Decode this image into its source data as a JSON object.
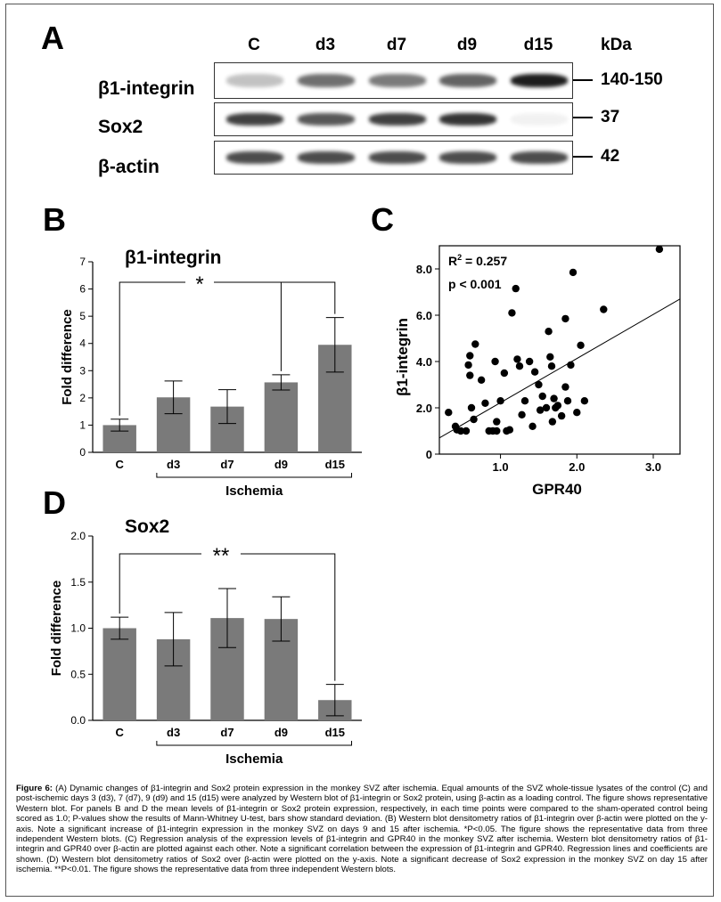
{
  "panel_a": {
    "letter": "A",
    "lanes": [
      "C",
      "d3",
      "d7",
      "d9",
      "d15"
    ],
    "kda_header": "kDa",
    "blots": [
      {
        "protein": "β1-integrin",
        "kda": "140-150",
        "intensities": [
          0.25,
          0.6,
          0.55,
          0.65,
          0.95
        ]
      },
      {
        "protein": "Sox2",
        "kda": "37",
        "intensities": [
          0.8,
          0.7,
          0.8,
          0.85,
          0.05
        ]
      },
      {
        "protein": "β-actin",
        "kda": "42",
        "intensities": [
          0.75,
          0.75,
          0.75,
          0.75,
          0.75
        ]
      }
    ]
  },
  "chart_data": [
    {
      "panel": "B",
      "type": "bar",
      "title": "β1-integrin",
      "ylabel": "Fold difference",
      "xlabel": "Ischemia",
      "categories": [
        "C",
        "d3",
        "d7",
        "d9",
        "d15"
      ],
      "values": [
        1.0,
        2.02,
        1.68,
        2.57,
        3.95
      ],
      "errors": [
        0.22,
        0.6,
        0.62,
        0.28,
        1.0
      ],
      "ylim": [
        0,
        7
      ],
      "yticks": [
        "0",
        "1",
        "2",
        "3",
        "4",
        "5",
        "6",
        "7"
      ],
      "significance": "*"
    },
    {
      "panel": "C",
      "type": "scatter",
      "xlabel": "GPR40",
      "ylabel": "β1-integrin",
      "xlim": [
        0.2,
        3.35
      ],
      "ylim": [
        0,
        9.0
      ],
      "xticks": [
        "1.0",
        "2.0",
        "3.0"
      ],
      "yticks": [
        "0",
        "2.0",
        "4.0",
        "6.0",
        "8.0"
      ],
      "annotation_r2_label": "R",
      "annotation_r2_exp": "2",
      "annotation_r2_value": "= 0.257",
      "annotation_p": "p < 0.001",
      "regression": {
        "x": [
          0.2,
          3.35
        ],
        "y": [
          0.7,
          6.7
        ]
      },
      "points": [
        [
          0.32,
          1.8
        ],
        [
          0.41,
          1.2
        ],
        [
          0.43,
          1.05
        ],
        [
          0.48,
          1.0
        ],
        [
          0.55,
          1.0
        ],
        [
          0.58,
          3.85
        ],
        [
          0.6,
          4.25
        ],
        [
          0.6,
          3.4
        ],
        [
          0.62,
          2.0
        ],
        [
          0.65,
          1.5
        ],
        [
          0.67,
          4.75
        ],
        [
          0.75,
          3.2
        ],
        [
          0.8,
          2.2
        ],
        [
          0.85,
          1.0
        ],
        [
          0.9,
          1.0
        ],
        [
          0.93,
          4.0
        ],
        [
          0.95,
          1.4
        ],
        [
          0.95,
          1.0
        ],
        [
          1.0,
          2.3
        ],
        [
          1.05,
          3.5
        ],
        [
          1.08,
          1.0
        ],
        [
          1.12,
          1.05
        ],
        [
          1.15,
          6.1
        ],
        [
          1.2,
          7.15
        ],
        [
          1.22,
          4.1
        ],
        [
          1.25,
          3.8
        ],
        [
          1.28,
          1.7
        ],
        [
          1.32,
          2.3
        ],
        [
          1.38,
          4.0
        ],
        [
          1.42,
          1.2
        ],
        [
          1.45,
          3.55
        ],
        [
          1.5,
          3.0
        ],
        [
          1.52,
          1.9
        ],
        [
          1.55,
          2.5
        ],
        [
          1.6,
          2.0
        ],
        [
          1.63,
          5.3
        ],
        [
          1.65,
          4.2
        ],
        [
          1.67,
          3.8
        ],
        [
          1.68,
          1.4
        ],
        [
          1.7,
          2.4
        ],
        [
          1.72,
          2.0
        ],
        [
          1.75,
          2.1
        ],
        [
          1.8,
          1.65
        ],
        [
          1.85,
          5.85
        ],
        [
          1.85,
          2.9
        ],
        [
          1.88,
          2.3
        ],
        [
          1.92,
          3.85
        ],
        [
          1.95,
          7.85
        ],
        [
          2.0,
          1.8
        ],
        [
          2.05,
          4.7
        ],
        [
          2.1,
          2.3
        ],
        [
          2.35,
          6.25
        ],
        [
          3.08,
          8.85
        ]
      ]
    },
    {
      "panel": "D",
      "type": "bar",
      "title": "Sox2",
      "ylabel": "Fold difference",
      "xlabel": "Ischemia",
      "categories": [
        "C",
        "d3",
        "d7",
        "d9",
        "d15"
      ],
      "values": [
        1.0,
        0.88,
        1.11,
        1.1,
        0.22
      ],
      "errors": [
        0.12,
        0.29,
        0.32,
        0.24,
        0.17
      ],
      "ylim": [
        0,
        2.0
      ],
      "yticks": [
        "0.0",
        "0.5",
        "1.0",
        "1.5",
        "2.0"
      ],
      "significance": "**"
    }
  ],
  "colors": {
    "bar": "#7a7a7a",
    "band": "#111111"
  },
  "caption": {
    "label": "Figure 6:",
    "text": "(A) Dynamic changes of β1-integrin and Sox2 protein expression in the monkey SVZ after ischemia. Equal amounts of the SVZ whole-tissue lysates of the control (C) and post-ischemic days 3 (d3), 7 (d7), 9 (d9) and 15 (d15) were analyzed by Western blot of β1-integrin or Sox2 protein, using β-actin as a loading control. The figure shows representative Western blot. For panels B and D the mean levels of β1-integrin or Sox2 protein expression, respectively, in each time points were compared to the sham-operated control being scored as 1.0; P-values show the results of Mann-Whitney U-test, bars show standard deviation. (B) Western blot densitometry ratios of β1-integrin over β-actin were plotted on the y-axis. Note a significant increase of β1-integrin expression in the monkey SVZ on days 9 and 15 after ischemia. *P<0.05. The figure shows the representative data from three independent Western blots. (C) Regression analysis of the expression levels of β1-integrin and GPR40 in the monkey SVZ after ischemia. Western blot densitometry ratios of β1-integrin and GPR40 over β-actin are plotted against each other. Note a significant correlation between the expression of β1-integrin and GPR40. Regression lines and coefficients are shown. (D) Western blot densitometry ratios of Sox2 over β-actin were plotted on the y-axis. Note a significant decrease of Sox2 expression in the monkey SVZ on day 15 after ischemia. **P<0.01. The figure shows the representative data from three independent Western blots."
  }
}
